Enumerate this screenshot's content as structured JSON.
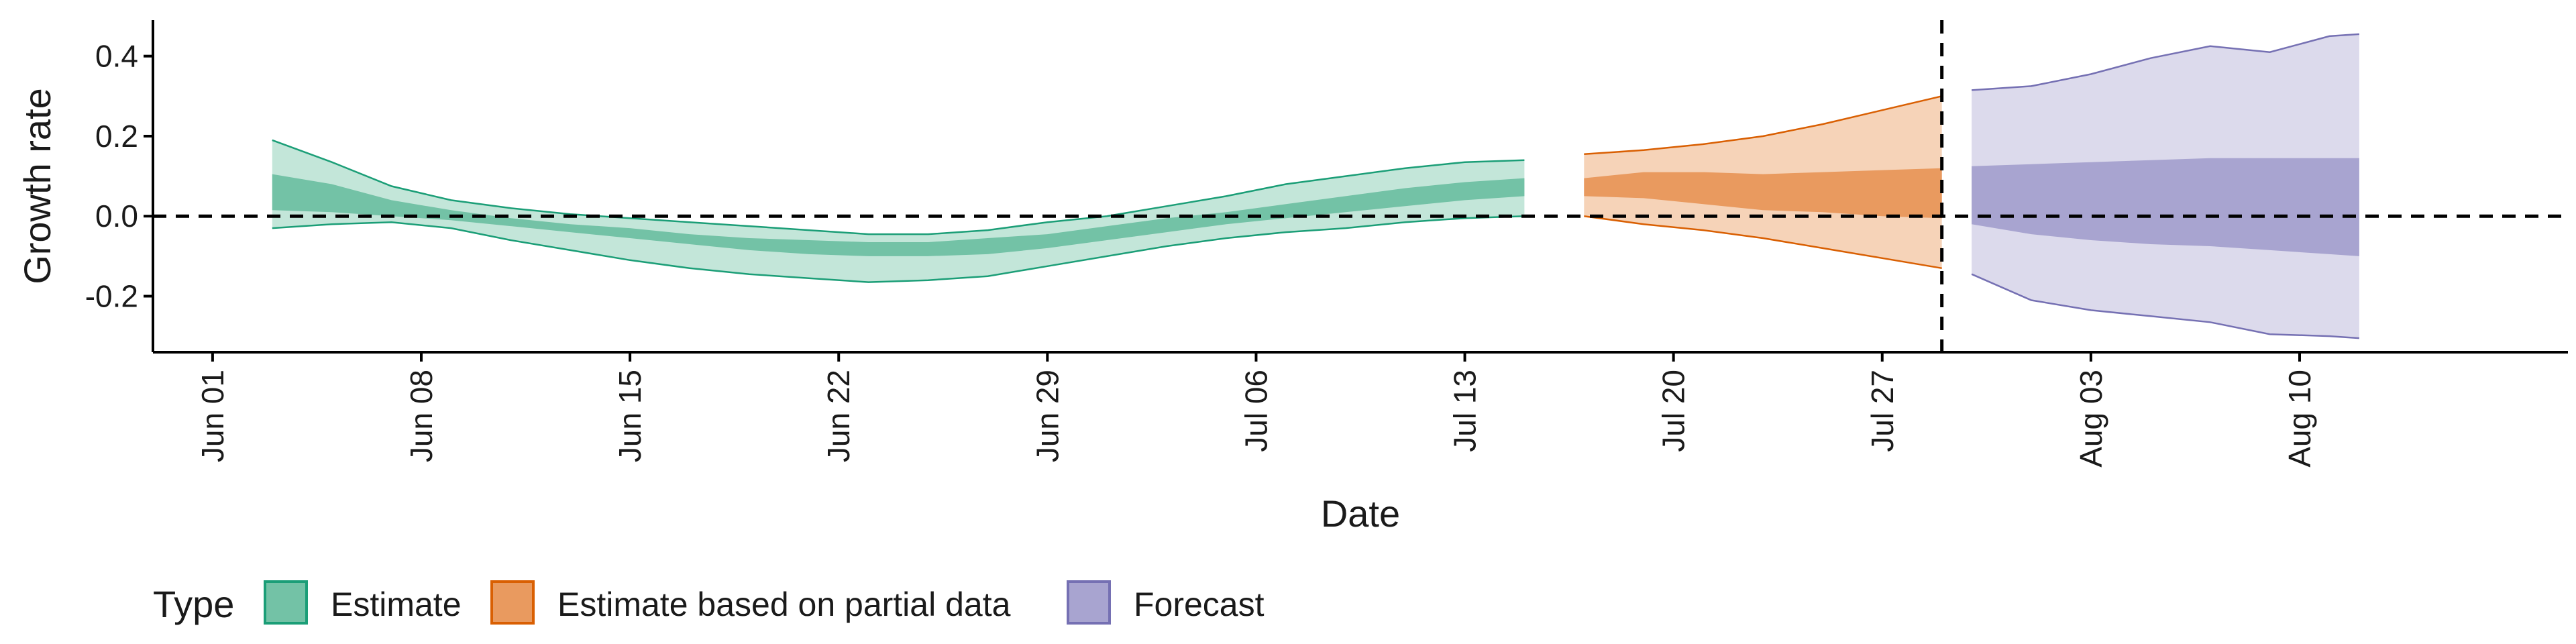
{
  "chart_data": {
    "type": "area",
    "xlabel": "Date",
    "ylabel": "Growth rate",
    "x_domain": [
      "2020-05-30",
      "2020-08-19"
    ],
    "ylim": [
      -0.34,
      0.49
    ],
    "x_ticks": [
      {
        "date": "2020-06-01",
        "label": "Jun 01"
      },
      {
        "date": "2020-06-08",
        "label": "Jun 08"
      },
      {
        "date": "2020-06-15",
        "label": "Jun 15"
      },
      {
        "date": "2020-06-22",
        "label": "Jun 22"
      },
      {
        "date": "2020-06-29",
        "label": "Jun 29"
      },
      {
        "date": "2020-07-06",
        "label": "Jul 06"
      },
      {
        "date": "2020-07-13",
        "label": "Jul 13"
      },
      {
        "date": "2020-07-20",
        "label": "Jul 20"
      },
      {
        "date": "2020-07-27",
        "label": "Jul 27"
      },
      {
        "date": "2020-08-03",
        "label": "Aug 03"
      },
      {
        "date": "2020-08-10",
        "label": "Aug 10"
      }
    ],
    "y_ticks": [
      {
        "value": -0.2,
        "label": "-0.2"
      },
      {
        "value": 0.0,
        "label": "0.0"
      },
      {
        "value": 0.2,
        "label": "0.2"
      },
      {
        "value": 0.4,
        "label": "0.4"
      }
    ],
    "reference_lines": {
      "horizontal": 0.0,
      "vertical_date": "2020-07-29"
    },
    "grid": false,
    "legend": {
      "title": "Type",
      "position": "bottom-left",
      "entries": [
        {
          "label": "Estimate",
          "fill": "#73c2a6",
          "stroke": "#1b9e77"
        },
        {
          "label": "Estimate based on partial data",
          "fill": "#e99a5f",
          "stroke": "#d95f02"
        },
        {
          "label": "Forecast",
          "fill": "#a8a4d0",
          "stroke": "#7570b3"
        }
      ]
    },
    "series": [
      {
        "name": "Estimate",
        "outer_color": "#c3e6d9",
        "inner_color": "#73c2a6",
        "edge_color": "#1b9e77",
        "points": [
          {
            "date": "2020-06-03",
            "lo90": -0.03,
            "lo50": 0.015,
            "hi50": 0.105,
            "hi90": 0.19
          },
          {
            "date": "2020-06-05",
            "lo90": -0.02,
            "lo50": 0.01,
            "hi50": 0.08,
            "hi90": 0.135
          },
          {
            "date": "2020-06-07",
            "lo90": -0.015,
            "lo50": 0.0,
            "hi50": 0.04,
            "hi90": 0.075
          },
          {
            "date": "2020-06-09",
            "lo90": -0.03,
            "lo50": -0.01,
            "hi50": 0.015,
            "hi90": 0.04
          },
          {
            "date": "2020-06-11",
            "lo90": -0.06,
            "lo50": -0.025,
            "hi50": -0.005,
            "hi90": 0.02
          },
          {
            "date": "2020-06-13",
            "lo90": -0.085,
            "lo50": -0.04,
            "hi50": -0.02,
            "hi90": 0.005
          },
          {
            "date": "2020-06-15",
            "lo90": -0.11,
            "lo50": -0.055,
            "hi50": -0.03,
            "hi90": -0.005
          },
          {
            "date": "2020-06-17",
            "lo90": -0.13,
            "lo50": -0.07,
            "hi50": -0.045,
            "hi90": -0.015
          },
          {
            "date": "2020-06-19",
            "lo90": -0.145,
            "lo50": -0.085,
            "hi50": -0.055,
            "hi90": -0.025
          },
          {
            "date": "2020-06-21",
            "lo90": -0.155,
            "lo50": -0.095,
            "hi50": -0.06,
            "hi90": -0.035
          },
          {
            "date": "2020-06-23",
            "lo90": -0.165,
            "lo50": -0.1,
            "hi50": -0.065,
            "hi90": -0.045
          },
          {
            "date": "2020-06-25",
            "lo90": -0.16,
            "lo50": -0.1,
            "hi50": -0.065,
            "hi90": -0.045
          },
          {
            "date": "2020-06-27",
            "lo90": -0.15,
            "lo50": -0.095,
            "hi50": -0.055,
            "hi90": -0.035
          },
          {
            "date": "2020-06-29",
            "lo90": -0.125,
            "lo50": -0.08,
            "hi50": -0.045,
            "hi90": -0.015
          },
          {
            "date": "2020-07-01",
            "lo90": -0.1,
            "lo50": -0.06,
            "hi50": -0.025,
            "hi90": 0.0
          },
          {
            "date": "2020-07-03",
            "lo90": -0.075,
            "lo50": -0.04,
            "hi50": -0.005,
            "hi90": 0.025
          },
          {
            "date": "2020-07-05",
            "lo90": -0.055,
            "lo50": -0.02,
            "hi50": 0.01,
            "hi90": 0.05
          },
          {
            "date": "2020-07-07",
            "lo90": -0.04,
            "lo50": -0.005,
            "hi50": 0.03,
            "hi90": 0.08
          },
          {
            "date": "2020-07-09",
            "lo90": -0.03,
            "lo50": 0.01,
            "hi50": 0.05,
            "hi90": 0.1
          },
          {
            "date": "2020-07-11",
            "lo90": -0.015,
            "lo50": 0.025,
            "hi50": 0.07,
            "hi90": 0.12
          },
          {
            "date": "2020-07-13",
            "lo90": -0.005,
            "lo50": 0.04,
            "hi50": 0.085,
            "hi90": 0.135
          },
          {
            "date": "2020-07-15",
            "lo90": 0.0,
            "lo50": 0.05,
            "hi50": 0.095,
            "hi90": 0.14
          }
        ]
      },
      {
        "name": "Estimate based on partial data",
        "outer_color": "#f6d3b8",
        "inner_color": "#e99a5f",
        "edge_color": "#d95f02",
        "points": [
          {
            "date": "2020-07-17",
            "lo90": 0.0,
            "lo50": 0.05,
            "hi50": 0.095,
            "hi90": 0.155
          },
          {
            "date": "2020-07-19",
            "lo90": -0.02,
            "lo50": 0.045,
            "hi50": 0.11,
            "hi90": 0.165
          },
          {
            "date": "2020-07-21",
            "lo90": -0.035,
            "lo50": 0.03,
            "hi50": 0.11,
            "hi90": 0.18
          },
          {
            "date": "2020-07-23",
            "lo90": -0.055,
            "lo50": 0.015,
            "hi50": 0.105,
            "hi90": 0.2
          },
          {
            "date": "2020-07-25",
            "lo90": -0.08,
            "lo50": 0.01,
            "hi50": 0.11,
            "hi90": 0.23
          },
          {
            "date": "2020-07-27",
            "lo90": -0.105,
            "lo50": 0.0,
            "hi50": 0.115,
            "hi90": 0.265
          },
          {
            "date": "2020-07-29",
            "lo90": -0.13,
            "lo50": -0.005,
            "hi50": 0.12,
            "hi90": 0.3
          }
        ]
      },
      {
        "name": "Forecast",
        "outer_color": "#dcdaec",
        "inner_color": "#a8a4d0",
        "edge_color": "#7570b3",
        "points": [
          {
            "date": "2020-07-30",
            "lo90": -0.145,
            "lo50": -0.02,
            "hi50": 0.125,
            "hi90": 0.315
          },
          {
            "date": "2020-08-01",
            "lo90": -0.21,
            "lo50": -0.045,
            "hi50": 0.13,
            "hi90": 0.325
          },
          {
            "date": "2020-08-03",
            "lo90": -0.235,
            "lo50": -0.06,
            "hi50": 0.135,
            "hi90": 0.355
          },
          {
            "date": "2020-08-05",
            "lo90": -0.25,
            "lo50": -0.07,
            "hi50": 0.14,
            "hi90": 0.395
          },
          {
            "date": "2020-08-07",
            "lo90": -0.265,
            "lo50": -0.075,
            "hi50": 0.145,
            "hi90": 0.425
          },
          {
            "date": "2020-08-09",
            "lo90": -0.295,
            "lo50": -0.085,
            "hi50": 0.145,
            "hi90": 0.41
          },
          {
            "date": "2020-08-11",
            "lo90": -0.3,
            "lo50": -0.095,
            "hi50": 0.145,
            "hi90": 0.45
          },
          {
            "date": "2020-08-12",
            "lo90": -0.305,
            "lo50": -0.1,
            "hi50": 0.145,
            "hi90": 0.455
          }
        ]
      }
    ]
  }
}
